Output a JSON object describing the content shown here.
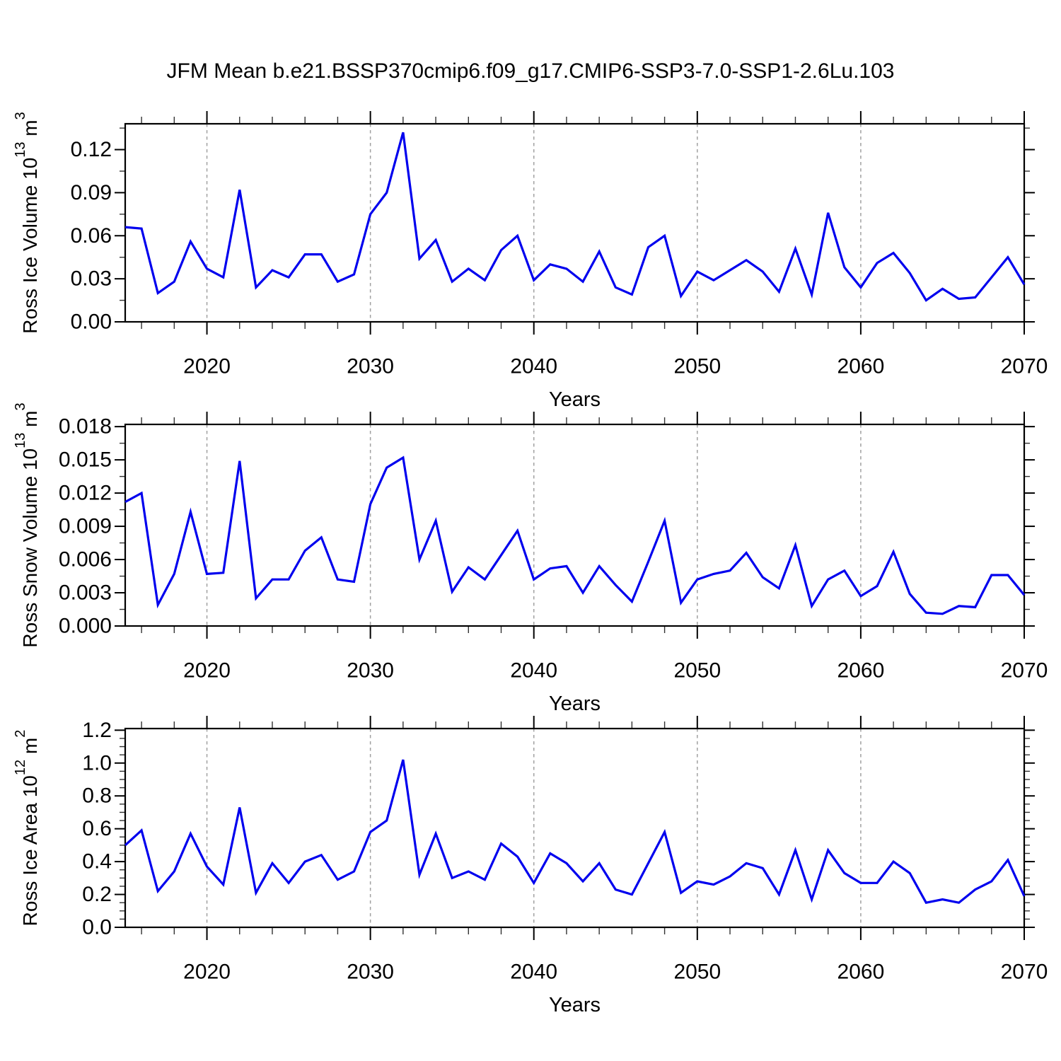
{
  "title": "JFM Mean b.e21.BSSP370cmip6.f09_g17.CMIP6-SSP3-7.0-SSP1-2.6Lu.103",
  "xlabel": "Years",
  "colors": {
    "line": "#0000ee",
    "grid": "#a0a0a0",
    "axis": "#000000",
    "minor_tick": "#333333",
    "background": "#ffffff"
  },
  "years": [
    2015,
    2016,
    2017,
    2018,
    2019,
    2020,
    2021,
    2022,
    2023,
    2024,
    2025,
    2026,
    2027,
    2028,
    2029,
    2030,
    2031,
    2032,
    2033,
    2034,
    2035,
    2036,
    2037,
    2038,
    2039,
    2040,
    2041,
    2042,
    2043,
    2044,
    2045,
    2046,
    2047,
    2048,
    2049,
    2050,
    2051,
    2052,
    2053,
    2054,
    2055,
    2056,
    2057,
    2058,
    2059,
    2060,
    2061,
    2062,
    2063,
    2064,
    2065,
    2066,
    2067,
    2068,
    2069,
    2070
  ],
  "chart_data": [
    {
      "type": "line",
      "name": "ross-ice-volume",
      "ylabel": "Ross Ice Volume 10^13 m^3",
      "ylabel_parts": [
        {
          "t": "Ross Ice Volume 10",
          "sup": false
        },
        {
          "t": "13",
          "sup": true
        },
        {
          "t": " m",
          "sup": false
        },
        {
          "t": "3",
          "sup": true
        }
      ],
      "xlabel": "Years",
      "xlim": [
        2015,
        2070
      ],
      "ylim": [
        0,
        0.138
      ],
      "yticks": {
        "values": [
          0.0,
          0.03,
          0.06,
          0.09,
          0.12
        ],
        "labels": [
          "0.00",
          "0.03",
          "0.06",
          "0.09",
          "0.12"
        ]
      },
      "y_minor_step": 0.015,
      "xticks": {
        "values": [
          2020,
          2030,
          2040,
          2050,
          2060,
          2070
        ],
        "labels": [
          "2020",
          "2030",
          "2040",
          "2050",
          "2060",
          "2070"
        ]
      },
      "x_minor_step": 2,
      "grid_x": [
        2020,
        2030,
        2040,
        2050,
        2060
      ],
      "values": [
        0.066,
        0.065,
        0.02,
        0.028,
        0.056,
        0.037,
        0.031,
        0.092,
        0.024,
        0.036,
        0.031,
        0.047,
        0.047,
        0.028,
        0.033,
        0.075,
        0.09,
        0.132,
        0.044,
        0.057,
        0.028,
        0.037,
        0.029,
        0.05,
        0.06,
        0.029,
        0.04,
        0.037,
        0.028,
        0.049,
        0.024,
        0.019,
        0.052,
        0.06,
        0.018,
        0.035,
        0.029,
        0.036,
        0.043,
        0.035,
        0.021,
        0.051,
        0.019,
        0.076,
        0.038,
        0.024,
        0.041,
        0.048,
        0.034,
        0.015,
        0.023,
        0.016,
        0.017,
        0.031,
        0.045,
        0.026
      ]
    },
    {
      "type": "line",
      "name": "ross-snow-volume",
      "ylabel": "Ross Snow Volume 10^13 m^3",
      "ylabel_parts": [
        {
          "t": "Ross Snow Volume 10",
          "sup": false
        },
        {
          "t": "13",
          "sup": true
        },
        {
          "t": " m",
          "sup": false
        },
        {
          "t": "3",
          "sup": true
        }
      ],
      "xlabel": "Years",
      "xlim": [
        2015,
        2070
      ],
      "ylim": [
        0,
        0.0182
      ],
      "yticks": {
        "values": [
          0.0,
          0.003,
          0.006,
          0.009,
          0.012,
          0.015,
          0.018
        ],
        "labels": [
          "0.000",
          "0.003",
          "0.006",
          "0.009",
          "0.012",
          "0.015",
          "0.018"
        ]
      },
      "y_minor_step": 0.0015,
      "xticks": {
        "values": [
          2020,
          2030,
          2040,
          2050,
          2060,
          2070
        ],
        "labels": [
          "2020",
          "2030",
          "2040",
          "2050",
          "2060",
          "2070"
        ]
      },
      "x_minor_step": 2,
      "grid_x": [
        2020,
        2030,
        2040,
        2050,
        2060
      ],
      "values": [
        0.0112,
        0.012,
        0.0019,
        0.0047,
        0.0103,
        0.0047,
        0.0048,
        0.0149,
        0.0025,
        0.0042,
        0.0042,
        0.0068,
        0.008,
        0.0042,
        0.004,
        0.011,
        0.0143,
        0.0152,
        0.006,
        0.0095,
        0.0031,
        0.0053,
        0.0042,
        0.0064,
        0.0086,
        0.0042,
        0.0052,
        0.0054,
        0.003,
        0.0054,
        0.0037,
        0.0022,
        0.0058,
        0.0095,
        0.0021,
        0.0042,
        0.0047,
        0.005,
        0.0066,
        0.0044,
        0.0034,
        0.0073,
        0.0018,
        0.0042,
        0.005,
        0.0027,
        0.0036,
        0.0067,
        0.0029,
        0.0012,
        0.0011,
        0.0018,
        0.0017,
        0.0046,
        0.0046,
        0.0028
      ]
    },
    {
      "type": "line",
      "name": "ross-ice-area",
      "ylabel": "Ross Ice Area 10^12 m^2",
      "ylabel_parts": [
        {
          "t": "Ross Ice Area 10",
          "sup": false
        },
        {
          "t": "12",
          "sup": true
        },
        {
          "t": " m",
          "sup": false
        },
        {
          "t": "2",
          "sup": true
        }
      ],
      "xlabel": "Years",
      "xlim": [
        2015,
        2070
      ],
      "ylim": [
        0,
        1.21
      ],
      "yticks": {
        "values": [
          0.0,
          0.2,
          0.4,
          0.6,
          0.8,
          1.0,
          1.2
        ],
        "labels": [
          "0.0",
          "0.2",
          "0.4",
          "0.6",
          "0.8",
          "1.0",
          "1.2"
        ]
      },
      "y_minor_step": 0.05,
      "xticks": {
        "values": [
          2020,
          2030,
          2040,
          2050,
          2060,
          2070
        ],
        "labels": [
          "2020",
          "2030",
          "2040",
          "2050",
          "2060",
          "2070"
        ]
      },
      "x_minor_step": 2,
      "grid_x": [
        2020,
        2030,
        2040,
        2050,
        2060
      ],
      "values": [
        0.5,
        0.59,
        0.22,
        0.34,
        0.57,
        0.37,
        0.26,
        0.73,
        0.21,
        0.39,
        0.27,
        0.4,
        0.44,
        0.29,
        0.34,
        0.58,
        0.65,
        1.02,
        0.32,
        0.57,
        0.3,
        0.34,
        0.29,
        0.51,
        0.43,
        0.27,
        0.45,
        0.39,
        0.28,
        0.39,
        0.23,
        0.2,
        0.39,
        0.58,
        0.21,
        0.28,
        0.26,
        0.31,
        0.39,
        0.36,
        0.2,
        0.47,
        0.17,
        0.47,
        0.33,
        0.27,
        0.27,
        0.4,
        0.33,
        0.15,
        0.17,
        0.15,
        0.23,
        0.28,
        0.41,
        0.19
      ]
    }
  ]
}
